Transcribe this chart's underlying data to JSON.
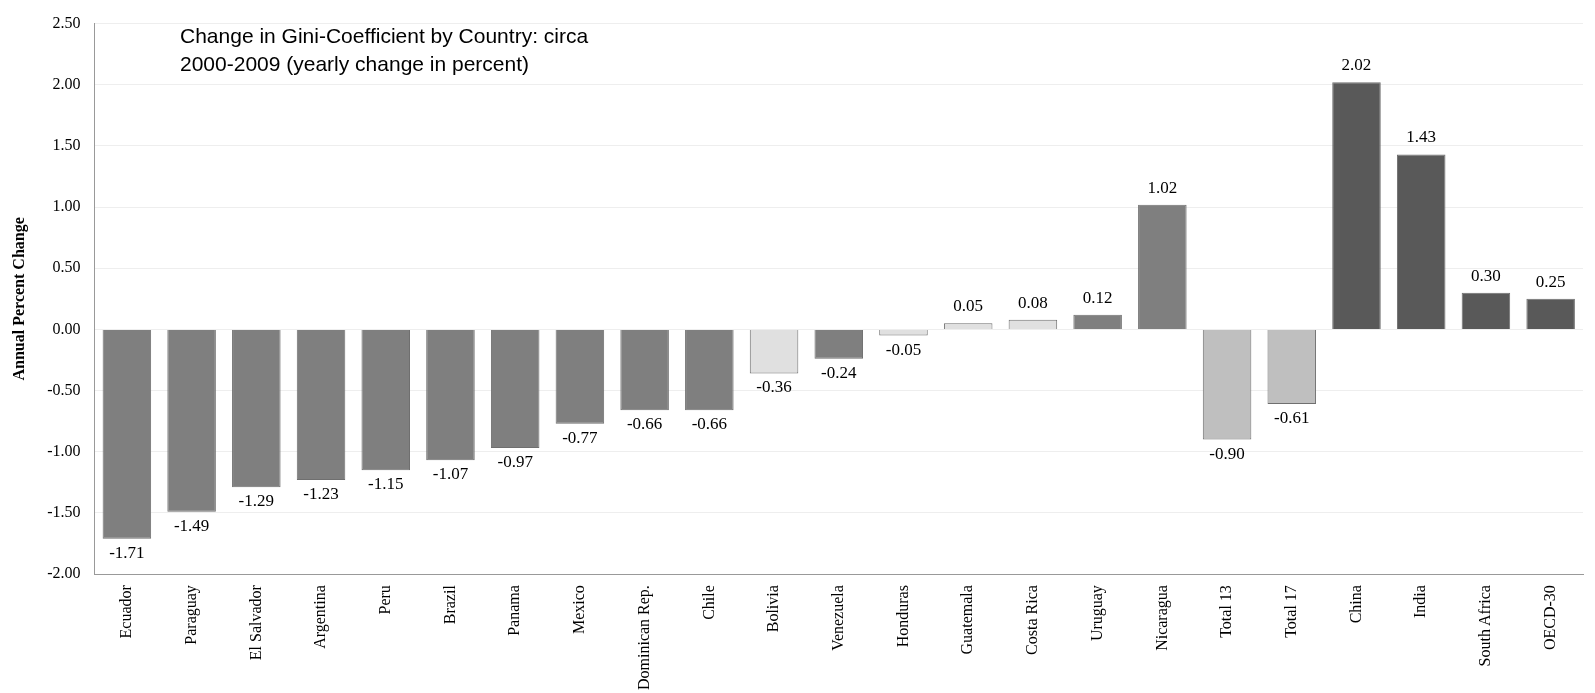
{
  "chart_data": {
    "type": "bar",
    "title": "Change in Gini-Coefficient by Country: circa 2000-2009 (yearly change in percent)",
    "ylabel": "Annual Percent Change",
    "categories": [
      "Ecuador",
      "Paraguay",
      "El Salvador",
      "Argentina",
      "Peru",
      "Brazil",
      "Panama",
      "Mexico",
      "Dominican Rep.",
      "Chile",
      "Bolivia",
      "Venezuela",
      "Honduras",
      "Guatemala",
      "Costa Rica",
      "Uruguay",
      "Nicaragua",
      "Total 13",
      "Total 17",
      "China",
      "India",
      "South Africa",
      "OECD-30"
    ],
    "values": [
      -1.71,
      -1.49,
      -1.29,
      -1.23,
      -1.15,
      -1.07,
      -0.97,
      -0.77,
      -0.66,
      -0.66,
      -0.36,
      -0.24,
      -0.05,
      0.05,
      0.08,
      0.12,
      1.02,
      -0.9,
      -0.61,
      2.02,
      1.43,
      0.3,
      0.25
    ],
    "value_labels": [
      "-1.71",
      "-1.49",
      "-1.29",
      "-1.23",
      "-1.15",
      "-1.07",
      "-0.97",
      "-0.77",
      "-0.66",
      "-0.66",
      "-0.36",
      "-0.24",
      "-0.05",
      "0.05",
      "0.08",
      "0.12",
      "1.02",
      "-0.90",
      "-0.61",
      "2.02",
      "1.43",
      "0.30",
      "0.25"
    ],
    "colors": [
      "#7f7f7f",
      "#7f7f7f",
      "#7f7f7f",
      "#7f7f7f",
      "#7f7f7f",
      "#7f7f7f",
      "#7f7f7f",
      "#7f7f7f",
      "#7f7f7f",
      "#7f7f7f",
      "#e0e0e0",
      "#7f7f7f",
      "#e0e0e0",
      "#e0e0e0",
      "#e0e0e0",
      "#7f7f7f",
      "#7f7f7f",
      "#bfbfbf",
      "#bfbfbf",
      "#595959",
      "#595959",
      "#595959",
      "#595959"
    ],
    "ylim": [
      -2,
      2.5
    ],
    "yticks": [
      {
        "value": -2,
        "label": "-2.00"
      },
      {
        "value": -1.5,
        "label": "-1.50"
      },
      {
        "value": -1,
        "label": "-1.00"
      },
      {
        "value": -0.5,
        "label": "-0.50"
      },
      {
        "value": 0,
        "label": "0.00"
      },
      {
        "value": 0.5,
        "label": "0.50"
      },
      {
        "value": 1,
        "label": "1.00"
      },
      {
        "value": 1.5,
        "label": "1.50"
      },
      {
        "value": 2,
        "label": "2.00"
      },
      {
        "value": 2.5,
        "label": "2.50"
      }
    ],
    "grid": "y"
  }
}
